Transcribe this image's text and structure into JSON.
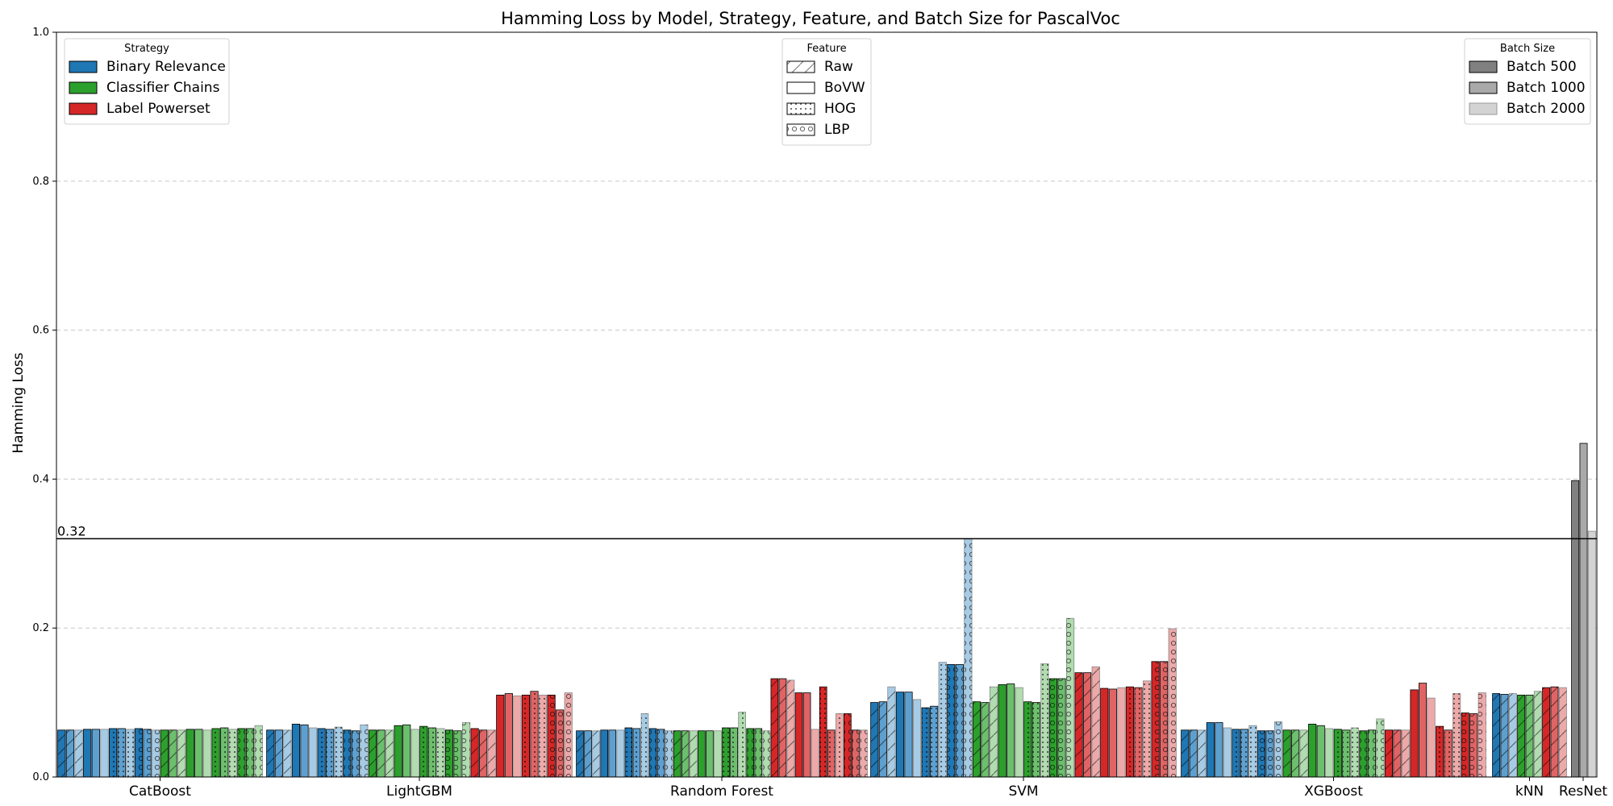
{
  "chart_data": {
    "type": "bar",
    "title": "Hamming Loss by Model, Strategy, Feature, and Batch Size for PascalVoc",
    "xlabel": "",
    "ylabel": "Hamming Loss",
    "ylim": [
      0,
      1.0
    ],
    "yticks": [
      "0.0",
      "0.2",
      "0.4",
      "0.6",
      "0.8",
      "1.0"
    ],
    "grid": "horizontal-dashed",
    "reference_line": {
      "value": 0.32,
      "label": "0.32"
    },
    "categories": [
      "CatBoost",
      "LightGBM",
      "Random Forest",
      "SVM",
      "XGBoost",
      "kNN",
      "ResNet"
    ],
    "legends": {
      "strategy": {
        "title": "Strategy",
        "placement": "top-left",
        "items": [
          {
            "label": "Binary Relevance",
            "color": "#1f77b4"
          },
          {
            "label": "Classifier Chains",
            "color": "#2ca02c"
          },
          {
            "label": "Label Powerset",
            "color": "#d62728"
          }
        ]
      },
      "feature": {
        "title": "Feature",
        "placement": "top-center",
        "items": [
          {
            "label": "Raw",
            "pattern": "diagonal"
          },
          {
            "label": "BoVW",
            "pattern": "none"
          },
          {
            "label": "HOG",
            "pattern": "dots"
          },
          {
            "label": "LBP",
            "pattern": "circles"
          }
        ]
      },
      "batch": {
        "title": "Batch Size",
        "placement": "top-right",
        "items": [
          {
            "label": "Batch 500",
            "color": "#808080"
          },
          {
            "label": "Batch 1000",
            "color": "#a9a9a9"
          },
          {
            "label": "Batch 2000",
            "color": "#d3d3d3"
          }
        ]
      }
    },
    "strategy_colors": {
      "Binary Relevance": [
        "#1f77b4",
        "#5da0d0",
        "#a6cbe5"
      ],
      "Classifier Chains": [
        "#2ca02c",
        "#6cbf6c",
        "#b0dcb0"
      ],
      "Label Powerset": [
        "#d62728",
        "#e06465",
        "#eda9a9"
      ]
    },
    "resnet_colors": [
      "#808080",
      "#a9a9a9",
      "#d3d3d3"
    ],
    "strategy_order": [
      "Binary Relevance",
      "Classifier Chains",
      "Label Powerset"
    ],
    "feature_order": [
      "Raw",
      "BoVW",
      "HOG",
      "LBP"
    ],
    "batch_order": [
      "500",
      "1000",
      "2000"
    ],
    "values": {
      "CatBoost": {
        "Binary Relevance": [
          [
            0.063,
            0.063,
            0.063
          ],
          [
            0.064,
            0.064,
            0.064
          ],
          [
            0.065,
            0.065,
            0.064
          ],
          [
            0.065,
            0.064,
            0.063
          ]
        ],
        "Classifier Chains": [
          [
            0.063,
            0.063,
            0.063
          ],
          [
            0.064,
            0.064,
            0.063
          ],
          [
            0.065,
            0.066,
            0.064
          ],
          [
            0.065,
            0.065,
            0.069
          ]
        ],
        "Label Powerset": []
      },
      "LightGBM": {
        "Binary Relevance": [
          [
            0.063,
            0.063,
            0.063
          ],
          [
            0.071,
            0.07,
            0.066
          ],
          [
            0.065,
            0.064,
            0.067
          ],
          [
            0.063,
            0.062,
            0.07
          ]
        ],
        "Classifier Chains": [
          [
            0.063,
            0.063,
            0.063
          ],
          [
            0.069,
            0.07,
            0.064
          ],
          [
            0.068,
            0.066,
            0.065
          ],
          [
            0.063,
            0.062,
            0.073
          ]
        ],
        "Label Powerset": [
          [
            0.065,
            0.063,
            0.063
          ],
          [
            0.11,
            0.112,
            0.109
          ],
          [
            0.11,
            0.115,
            0.11
          ],
          [
            0.11,
            0.09,
            0.113
          ]
        ]
      },
      "Random Forest": {
        "Binary Relevance": [
          [
            0.062,
            0.062,
            0.062
          ],
          [
            0.063,
            0.063,
            0.063
          ],
          [
            0.066,
            0.065,
            0.085
          ],
          [
            0.065,
            0.064,
            0.062
          ]
        ],
        "Classifier Chains": [
          [
            0.062,
            0.062,
            0.062
          ],
          [
            0.062,
            0.062,
            0.062
          ],
          [
            0.066,
            0.066,
            0.087
          ],
          [
            0.065,
            0.065,
            0.062
          ]
        ],
        "Label Powerset": [
          [
            0.132,
            0.132,
            0.13
          ],
          [
            0.113,
            0.113,
            0.064
          ],
          [
            0.121,
            0.063,
            0.085
          ],
          [
            0.085,
            0.063,
            0.063
          ]
        ]
      },
      "SVM": {
        "Binary Relevance": [
          [
            0.1,
            0.101,
            0.121
          ],
          [
            0.114,
            0.114,
            0.104
          ],
          [
            0.093,
            0.095,
            0.154
          ],
          [
            0.151,
            0.151,
            0.32
          ]
        ],
        "Classifier Chains": [
          [
            0.101,
            0.1,
            0.121
          ],
          [
            0.124,
            0.125,
            0.12
          ],
          [
            0.101,
            0.1,
            0.152
          ],
          [
            0.132,
            0.132,
            0.213
          ]
        ],
        "Label Powerset": [
          [
            0.14,
            0.14,
            0.148
          ],
          [
            0.119,
            0.118,
            0.12
          ],
          [
            0.121,
            0.12,
            0.129
          ],
          [
            0.155,
            0.155,
            0.199
          ]
        ]
      },
      "XGBoost": {
        "Binary Relevance": [
          [
            0.063,
            0.063,
            0.063
          ],
          [
            0.073,
            0.073,
            0.066
          ],
          [
            0.064,
            0.064,
            0.069
          ],
          [
            0.062,
            0.062,
            0.074
          ]
        ],
        "Classifier Chains": [
          [
            0.063,
            0.063,
            0.063
          ],
          [
            0.071,
            0.069,
            0.065
          ],
          [
            0.064,
            0.063,
            0.066
          ],
          [
            0.062,
            0.063,
            0.078
          ]
        ],
        "Label Powerset": [
          [
            0.063,
            0.063,
            0.063
          ],
          [
            0.117,
            0.126,
            0.106
          ],
          [
            0.068,
            0.063,
            0.112
          ],
          [
            0.086,
            0.085,
            0.113
          ]
        ]
      },
      "kNN": {
        "Binary Relevance": [
          [
            0.112,
            0.111,
            0.112
          ]
        ],
        "Classifier Chains": [
          [
            0.11,
            0.11,
            0.115
          ]
        ],
        "Label Powerset": [
          [
            0.12,
            0.121,
            0.12
          ]
        ]
      },
      "ResNet": {
        "values": [
          0.398,
          0.448,
          0.33
        ]
      }
    }
  }
}
